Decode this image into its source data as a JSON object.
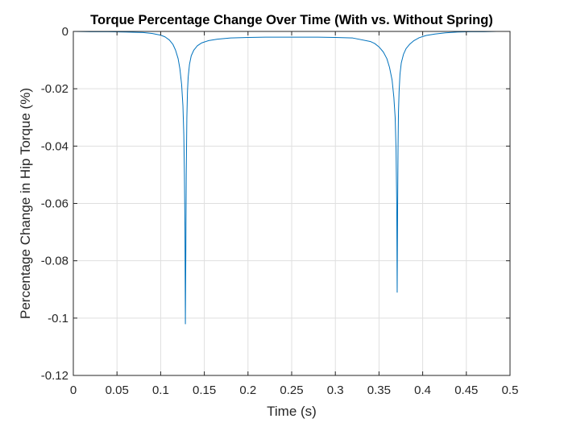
{
  "chart_data": {
    "type": "line",
    "title": "Torque Percentage Change Over Time (With vs. Without Spring)",
    "xlabel": "Time (s)",
    "ylabel": "Percentage Change in Hip Torque (%)",
    "xlim": [
      0,
      0.5
    ],
    "ylim": [
      -0.12,
      0
    ],
    "x_ticks": [
      0,
      0.05,
      0.1,
      0.15,
      0.2,
      0.25,
      0.3,
      0.35,
      0.4,
      0.45,
      0.5
    ],
    "x_tick_labels": [
      "0",
      "0.05",
      "0.1",
      "0.15",
      "0.2",
      "0.25",
      "0.3",
      "0.35",
      "0.4",
      "0.45",
      "0.5"
    ],
    "y_ticks": [
      0,
      -0.02,
      -0.04,
      -0.06,
      -0.08,
      -0.1,
      -0.12
    ],
    "y_tick_labels": [
      "0",
      "-0.02",
      "-0.04",
      "-0.06",
      "-0.08",
      "-0.1",
      "-0.12"
    ],
    "grid": true,
    "legend": "none",
    "series": [
      {
        "color": "#0072BD",
        "x": [
          0,
          0.02,
          0.04,
          0.06,
          0.08,
          0.09,
          0.1,
          0.105,
          0.11,
          0.114,
          0.117,
          0.12,
          0.122,
          0.124,
          0.1255,
          0.1265,
          0.1272,
          0.1278,
          0.1283,
          0.1288,
          0.1293,
          0.13,
          0.1307,
          0.1315,
          0.133,
          0.135,
          0.138,
          0.142,
          0.147,
          0.155,
          0.165,
          0.18,
          0.2,
          0.22,
          0.25,
          0.28,
          0.3,
          0.32,
          0.34,
          0.345,
          0.35,
          0.355,
          0.359,
          0.362,
          0.365,
          0.367,
          0.3685,
          0.3695,
          0.3703,
          0.3708,
          0.3713,
          0.3718,
          0.3723,
          0.373,
          0.374,
          0.3755,
          0.378,
          0.381,
          0.385,
          0.39,
          0.396,
          0.404,
          0.414,
          0.426,
          0.44,
          0.455,
          0.47,
          0.485,
          0.5
        ],
        "y": [
          0,
          -0.0001,
          -0.0001,
          -0.0002,
          -0.0004,
          -0.0007,
          -0.0013,
          -0.0019,
          -0.003,
          -0.0045,
          -0.0065,
          -0.0095,
          -0.013,
          -0.0185,
          -0.026,
          -0.036,
          -0.05,
          -0.068,
          -0.102,
          -0.078,
          -0.05,
          -0.03,
          -0.021,
          -0.016,
          -0.0115,
          -0.0085,
          -0.0065,
          -0.005,
          -0.004,
          -0.0032,
          -0.0027,
          -0.0023,
          -0.0021,
          -0.002,
          -0.002,
          -0.002,
          -0.0021,
          -0.0023,
          -0.0035,
          -0.0042,
          -0.0054,
          -0.0072,
          -0.0095,
          -0.0125,
          -0.017,
          -0.023,
          -0.03,
          -0.041,
          -0.06,
          -0.091,
          -0.062,
          -0.04,
          -0.028,
          -0.021,
          -0.015,
          -0.011,
          -0.008,
          -0.006,
          -0.0045,
          -0.0032,
          -0.0022,
          -0.0014,
          -0.0009,
          -0.0005,
          -0.0002,
          -0.0001,
          -0.0001,
          0,
          0
        ]
      }
    ]
  }
}
